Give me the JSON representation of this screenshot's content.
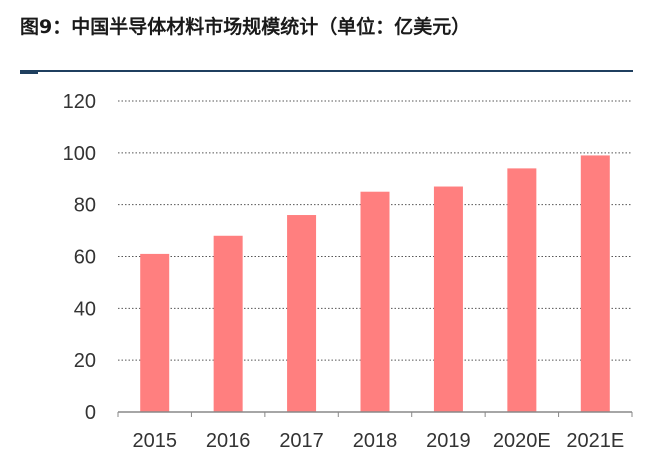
{
  "figure": {
    "title": "图9：中国半导体材料市场规模统计（单位：亿美元）"
  },
  "colors": {
    "bar": "#FF7F7F",
    "rule": "#1f3f5f",
    "grid": "#555555",
    "axis": "#888888"
  },
  "chart_data": {
    "type": "bar",
    "title": "图9：中国半导体材料市场规模统计（单位：亿美元）",
    "categories": [
      "2015",
      "2016",
      "2017",
      "2018",
      "2019",
      "2020E",
      "2021E"
    ],
    "values": [
      61,
      68,
      76,
      85,
      87,
      94,
      99
    ],
    "xlabel": "",
    "ylabel": "",
    "ylim": [
      0,
      120
    ],
    "yticks": [
      0,
      20,
      40,
      60,
      80,
      100,
      120
    ],
    "grid": true,
    "grid_style": "dotted",
    "legend": "none"
  }
}
